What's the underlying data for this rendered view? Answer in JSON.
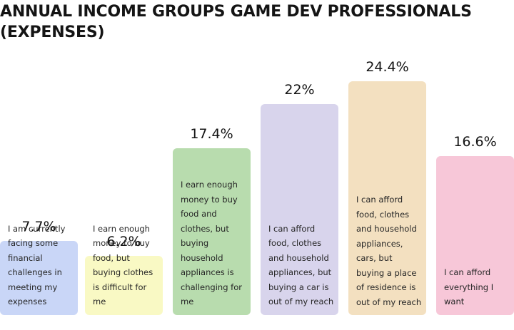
{
  "chart_data": {
    "type": "bar",
    "title": "ANNUAL INCOME GROUPS GAME DEV PROFESSIONALS (EXPENSES)",
    "categories": [
      "I am currently facing some financial challenges in meeting my expenses",
      "I earn enough money to buy food, but buying clothes is difficult for me",
      "I earn enough money to buy food and clothes, but buying household appliances is challenging for me",
      "I can afford food, clothes and household appliances, but buying a car is out of my reach",
      "I can afford food, clothes and household appliances, cars, but buying a place of residence is out of my reach",
      "I can afford everything I want"
    ],
    "values": [
      7.7,
      6.2,
      17.4,
      22,
      24.4,
      16.6
    ],
    "value_labels": [
      "7.7%",
      "6.2%",
      "17.4%",
      "22%",
      "24.4%",
      "16.6%"
    ],
    "colors": [
      "#c9d6f7",
      "#f9f9c4",
      "#b8dcae",
      "#d8d4ec",
      "#f3e0c0",
      "#f7c7d8"
    ],
    "ylim": [
      0,
      24.4
    ],
    "grid": false,
    "legend": "none"
  }
}
